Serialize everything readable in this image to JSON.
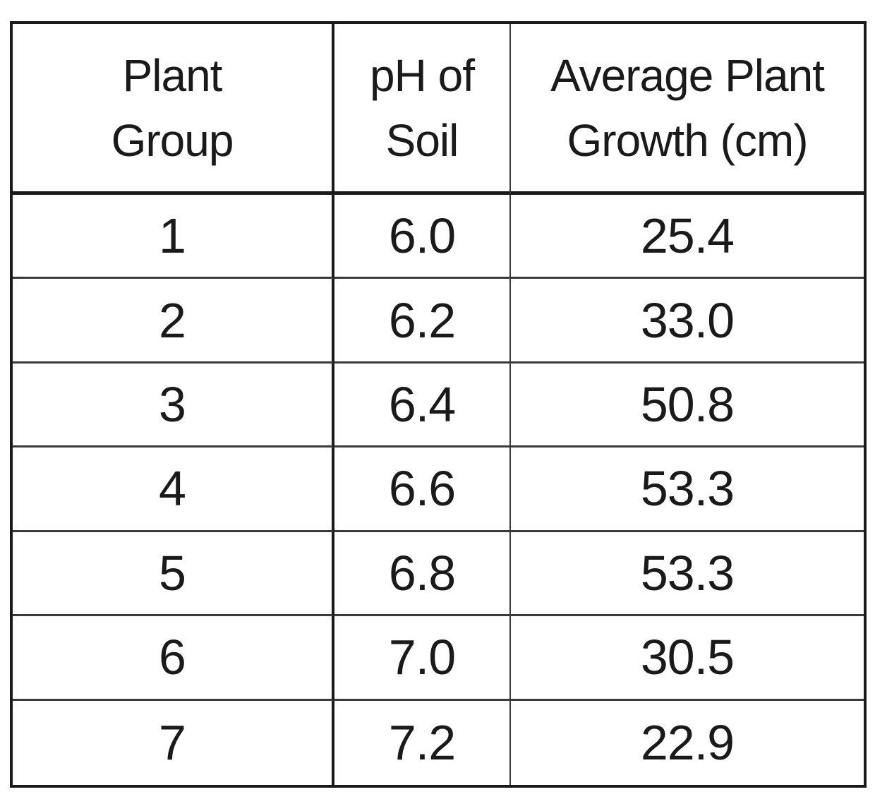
{
  "table": {
    "headers": [
      [
        "Plant",
        "Group"
      ],
      [
        "pH of",
        "Soil"
      ],
      [
        "Average Plant",
        "Growth (cm)"
      ]
    ],
    "rows": [
      [
        "1",
        "6.0",
        "25.4"
      ],
      [
        "2",
        "6.2",
        "33.0"
      ],
      [
        "3",
        "6.4",
        "50.8"
      ],
      [
        "4",
        "6.6",
        "53.3"
      ],
      [
        "5",
        "6.8",
        "53.3"
      ],
      [
        "6",
        "7.0",
        "30.5"
      ],
      [
        "7",
        "7.2",
        "22.9"
      ]
    ]
  }
}
